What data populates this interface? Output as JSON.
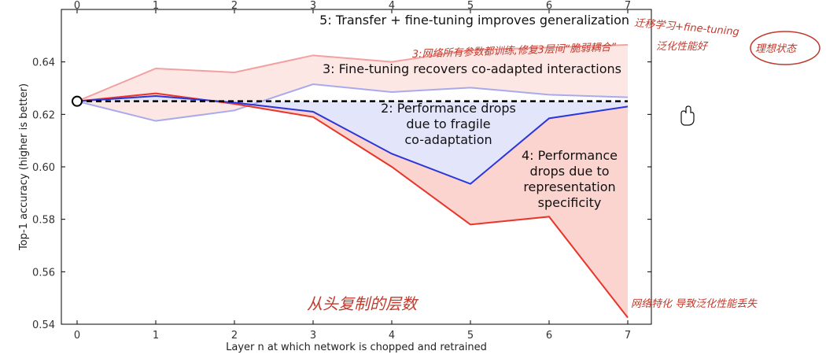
{
  "chart_data": {
    "type": "line",
    "xlabel": "Layer n at which network is chopped and retrained",
    "ylabel": "Top-1 accuracy (higher is better)",
    "x": [
      0,
      1,
      2,
      3,
      4,
      5,
      6,
      7
    ],
    "xlim": [
      -0.2,
      7.3
    ],
    "ylim": [
      0.54,
      0.66
    ],
    "yticks": [
      "0.54",
      "0.56",
      "0.58",
      "0.60",
      "0.62",
      "0.64"
    ],
    "xticks": [
      "0",
      "1",
      "2",
      "3",
      "4",
      "5",
      "6",
      "7"
    ],
    "grid": false,
    "baseline": 0.625,
    "series": [
      {
        "key": "light_red",
        "values": [
          0.625,
          0.6375,
          0.636,
          0.6425,
          0.64,
          0.6445,
          0.6455,
          0.6465
        ]
      },
      {
        "key": "light_blue",
        "values": [
          0.625,
          0.6175,
          0.6215,
          0.6315,
          0.6285,
          0.6302,
          0.6275,
          0.6265
        ]
      },
      {
        "key": "blue",
        "values": [
          0.625,
          0.627,
          0.6245,
          0.621,
          0.605,
          0.5935,
          0.6185,
          0.623
        ]
      },
      {
        "key": "red",
        "values": [
          0.625,
          0.628,
          0.624,
          0.619,
          0.6,
          0.578,
          0.581,
          0.5425
        ]
      }
    ],
    "annotations": [
      {
        "id": "a5",
        "lines": [
          "5: Transfer + fine-tuning improves generalization"
        ]
      },
      {
        "id": "a3",
        "lines": [
          "3: Fine-tuning recovers co-adapted interactions"
        ]
      },
      {
        "id": "a2",
        "lines": [
          "2: Performance drops",
          "due to fragile",
          "co-adaptation"
        ]
      },
      {
        "id": "a4",
        "lines": [
          "4: Performance",
          "drops due to",
          "representation",
          "specificity"
        ]
      }
    ],
    "handwritten_notes": [
      {
        "id": "h1",
        "text": "迁移学习+fine-tuning"
      },
      {
        "id": "h2",
        "text": "泛化性能好"
      },
      {
        "id": "h3",
        "text": "理想状态"
      },
      {
        "id": "h4",
        "text": "3:网络所有参数都训练,修复3层间“脆弱耦合”"
      },
      {
        "id": "h5",
        "text": "从头复制的层数"
      },
      {
        "id": "h6",
        "text": "网络特化 导致泛化性能丢失"
      }
    ],
    "colors": {
      "red": "#e8352a",
      "blue": "#2a36d8",
      "light_red": "#f2a0a0",
      "light_blue": "#a8aaee",
      "fill_red": "#fbd3cf",
      "fill_blue": "#e3e5fb",
      "fill_pink": "#fde7e4"
    }
  }
}
